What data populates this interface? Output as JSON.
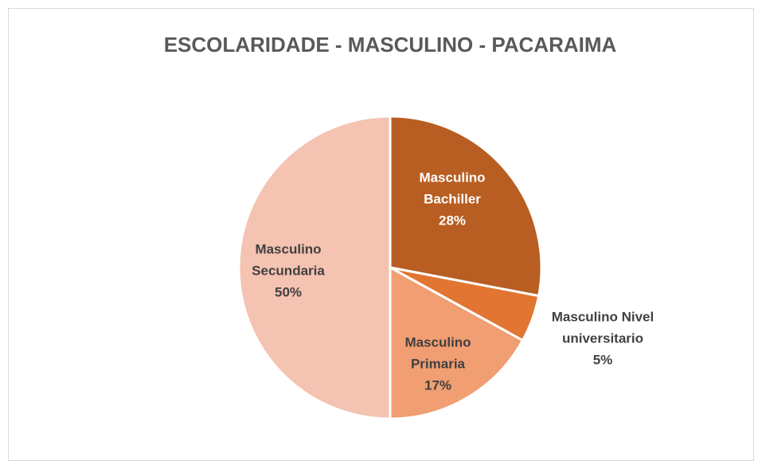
{
  "chart_data": {
    "type": "pie",
    "title": "ESCOLARIDADE - MASCULINO - PACARAIMA",
    "categories": [
      "Masculino Bachiller",
      "Masculino Nivel universitario",
      "Masculino Primaria",
      "Masculino Secundaria"
    ],
    "values": [
      28,
      5,
      17,
      50
    ],
    "value_labels": [
      "28%",
      "5%",
      "17%",
      "50%"
    ],
    "colors": [
      "#b85e22",
      "#e17531",
      "#f09e72",
      "#f5c3b1"
    ]
  }
}
